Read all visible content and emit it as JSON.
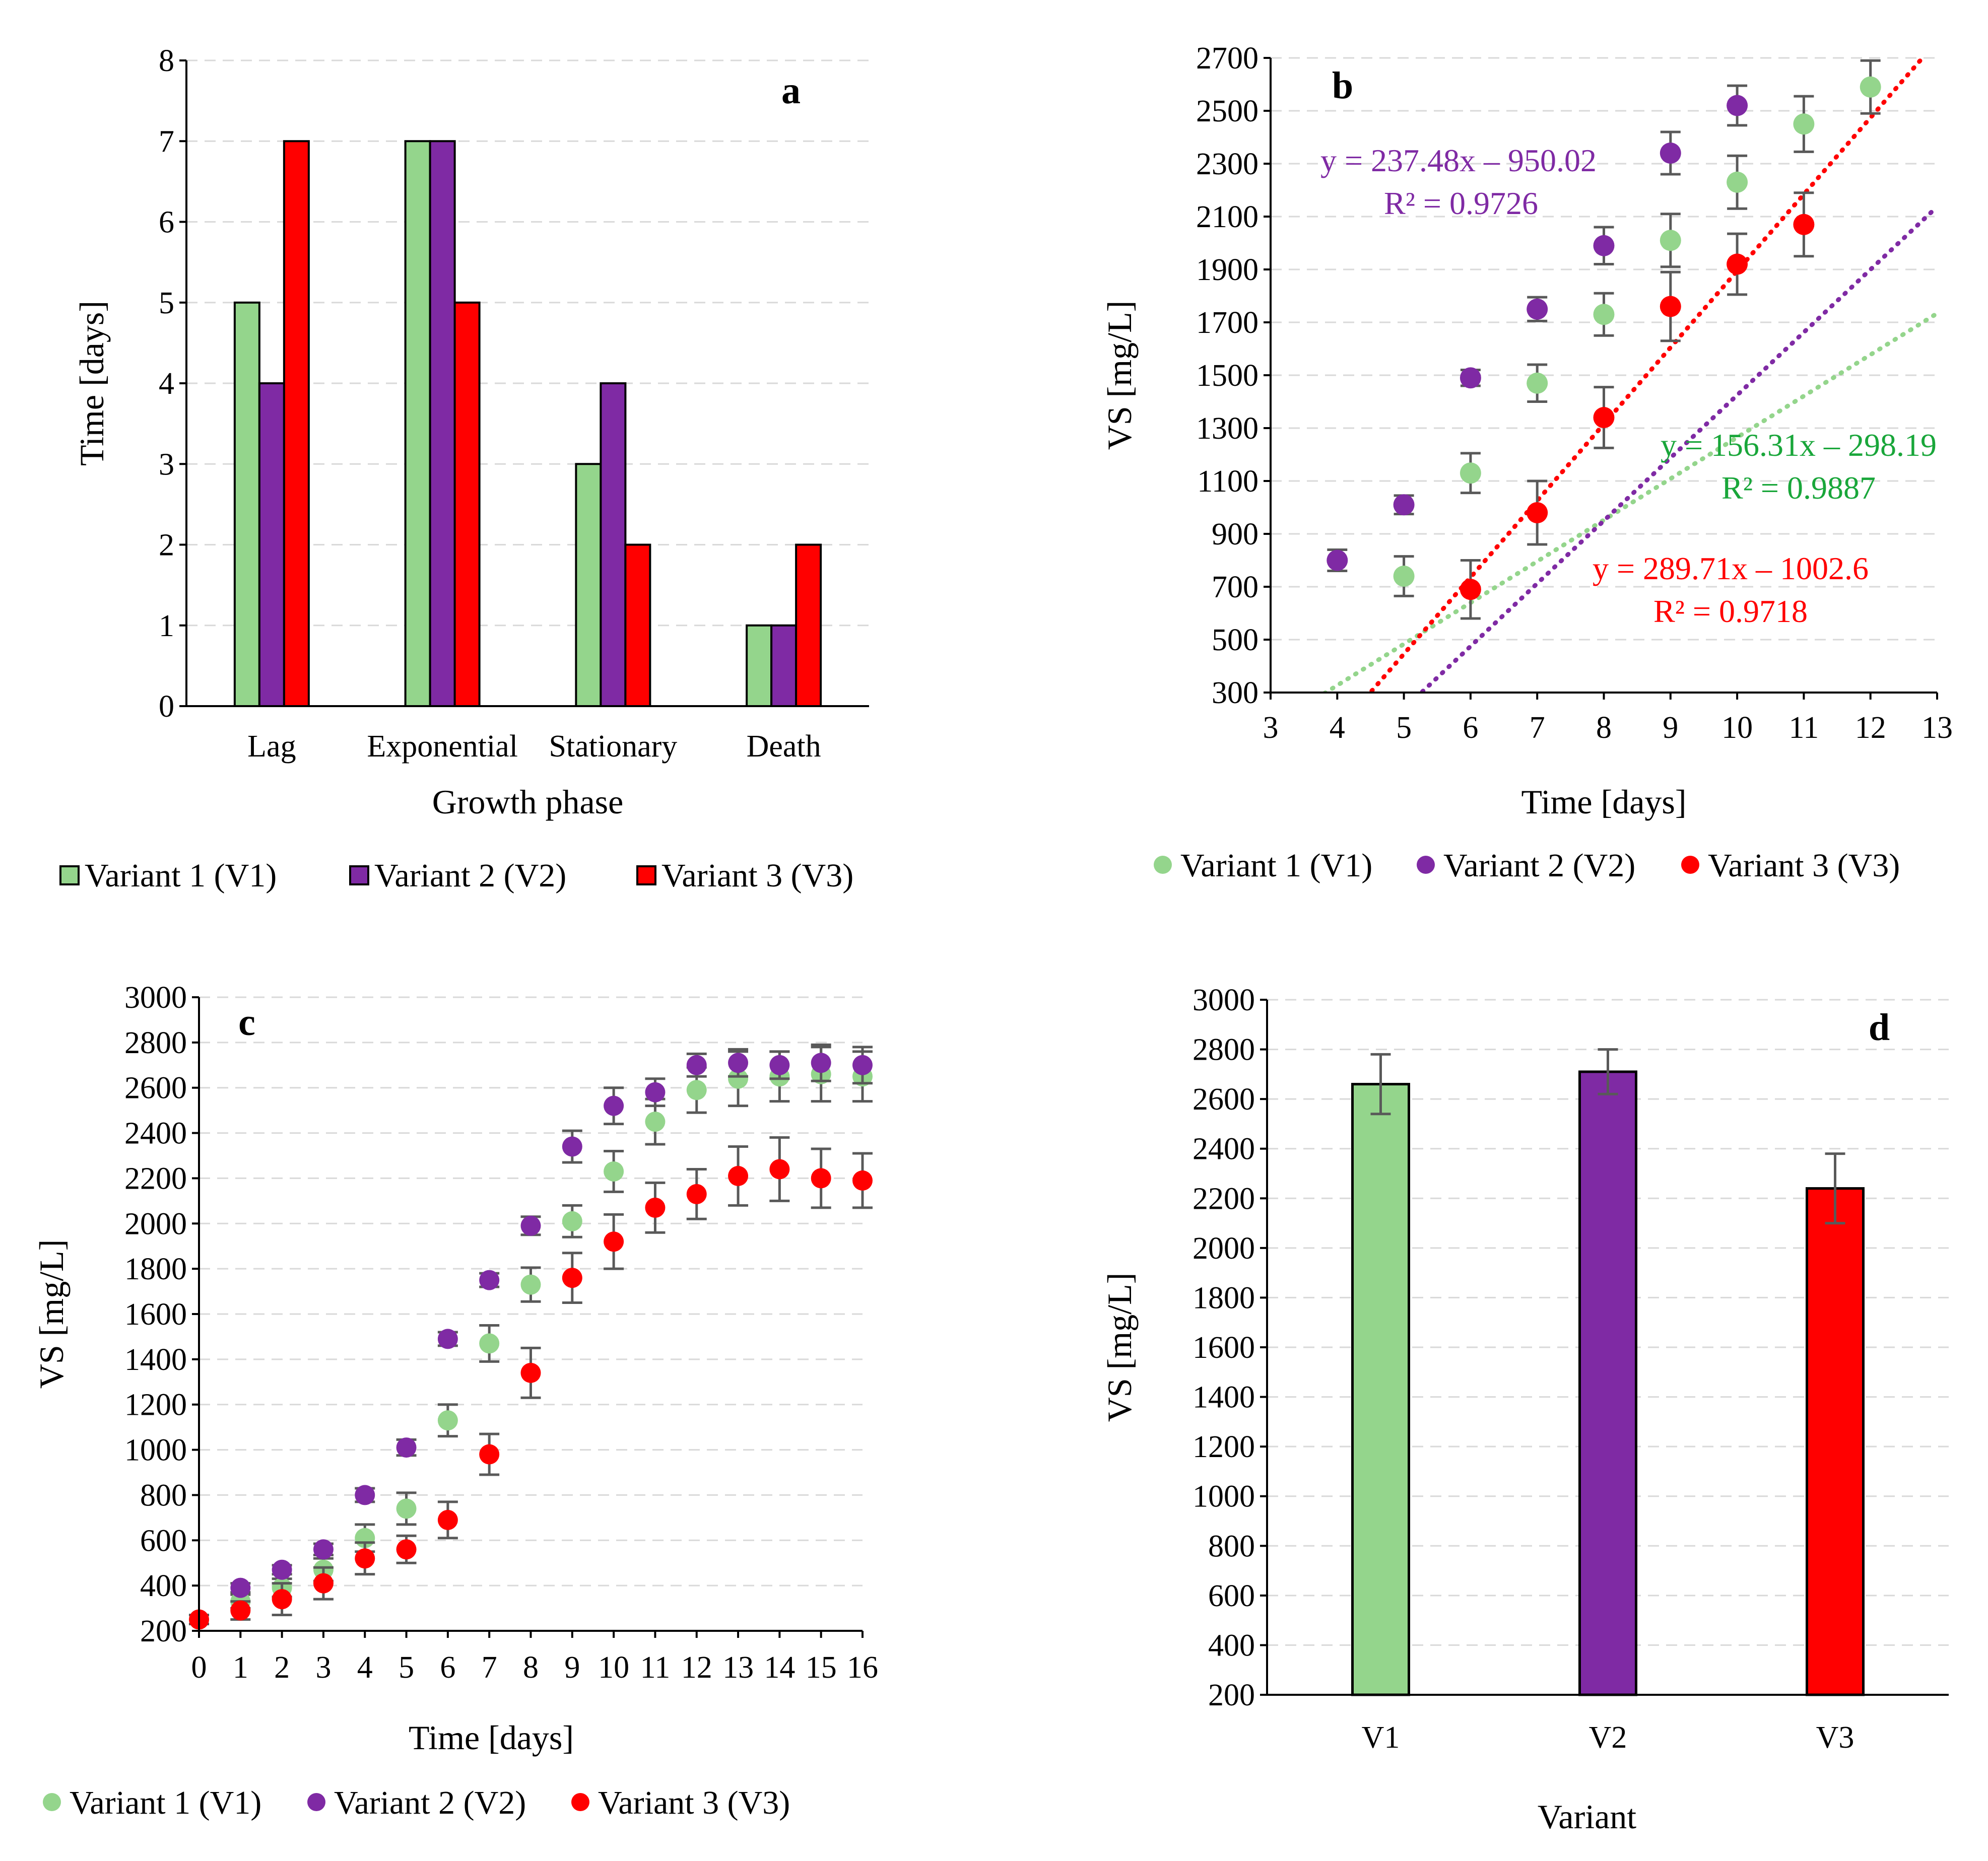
{
  "colors": {
    "v1": "#94d58c",
    "v2": "#7f2aa4",
    "v3": "#ff0000",
    "eq_v1": "#19a63a",
    "eq_v2": "#7f2aa4",
    "eq_v3": "#ff0000",
    "err": "#595959"
  },
  "chart_data": [
    {
      "id": "a",
      "type": "bar",
      "panel_label": "a",
      "title": "",
      "xlabel": "Growth phase",
      "ylabel": "Time [days]",
      "ylim": [
        0,
        8
      ],
      "yticks": [
        "0",
        "1",
        "2",
        "3",
        "4",
        "5",
        "6",
        "7",
        "8"
      ],
      "categories": [
        "Lag",
        "Exponential",
        "Stationary",
        "Death"
      ],
      "series": [
        {
          "name": "Variant 1 (V1)",
          "color_key": "v1",
          "values": [
            5,
            7,
            3,
            1
          ]
        },
        {
          "name": "Variant 2 (V2)",
          "color_key": "v2",
          "values": [
            4,
            7,
            4,
            1
          ]
        },
        {
          "name": "Variant 3 (V3)",
          "color_key": "v3",
          "values": [
            7,
            5,
            2,
            2
          ]
        }
      ],
      "legend": "bottom",
      "grid": true
    },
    {
      "id": "b",
      "type": "scatter",
      "panel_label": "b",
      "title": "",
      "xlabel": "Time [days]",
      "ylabel": "VS [mg/L]",
      "xlim": [
        3,
        13
      ],
      "ylim": [
        300,
        2700
      ],
      "xticks": [
        "3",
        "4",
        "5",
        "6",
        "7",
        "8",
        "9",
        "10",
        "11",
        "12",
        "13"
      ],
      "yticks": [
        "300",
        "500",
        "700",
        "900",
        "1100",
        "1300",
        "1500",
        "1700",
        "1900",
        "2100",
        "2300",
        "2500",
        "2700"
      ],
      "series": [
        {
          "name": "Variant 1 (V1)",
          "color_key": "v1",
          "x": [
            5,
            6,
            7,
            8,
            9,
            10,
            11,
            12
          ],
          "y": [
            740,
            1130,
            1470,
            1730,
            2010,
            2230,
            2450,
            2590
          ],
          "err": [
            75,
            75,
            70,
            80,
            100,
            100,
            105,
            100
          ],
          "trend": {
            "slope": 156.31,
            "intercept": -298.19
          }
        },
        {
          "name": "Variant 2 (V2)",
          "color_key": "v2",
          "x": [
            4,
            5,
            6,
            7,
            8,
            9,
            10
          ],
          "y": [
            800,
            1010,
            1490,
            1750,
            1990,
            2340,
            2520
          ],
          "err": [
            40,
            35,
            30,
            45,
            70,
            80,
            75
          ],
          "trend": {
            "slope": 237.48,
            "intercept": -950.02
          }
        },
        {
          "name": "Variant 3 (V3)",
          "color_key": "v3",
          "x": [
            6,
            7,
            8,
            9,
            10,
            11
          ],
          "y": [
            690,
            980,
            1340,
            1760,
            1920,
            2070
          ],
          "err": [
            110,
            120,
            115,
            130,
            115,
            120
          ],
          "trend": {
            "slope": 289.71,
            "intercept": -1002.6
          }
        }
      ],
      "annotations": [
        {
          "color_key": "eq_v2",
          "equation": "y = 237.48x – 950.02",
          "r2": "R² = 0.9726"
        },
        {
          "color_key": "eq_v1",
          "equation": "y = 156.31x – 298.19",
          "r2": "R² = 0.9887"
        },
        {
          "color_key": "eq_v3",
          "equation": "y = 289.71x – 1002.6",
          "r2": "R² = 0.9718"
        }
      ],
      "legend": "bottom",
      "grid": true
    },
    {
      "id": "c",
      "type": "scatter",
      "panel_label": "c",
      "title": "",
      "xlabel": "Time [days]",
      "ylabel": "VS [mg/L]",
      "xlim": [
        0,
        16
      ],
      "ylim": [
        200,
        3000
      ],
      "xticks": [
        "0",
        "1",
        "2",
        "3",
        "4",
        "5",
        "6",
        "7",
        "8",
        "9",
        "10",
        "11",
        "12",
        "13",
        "14",
        "15",
        "16"
      ],
      "yticks": [
        "200",
        "400",
        "600",
        "800",
        "1000",
        "1200",
        "1400",
        "1600",
        "1800",
        "2000",
        "2200",
        "2400",
        "2600",
        "2800",
        "3000"
      ],
      "series": [
        {
          "name": "Variant 1 (V1)",
          "color_key": "v1",
          "x": [
            0,
            1,
            2,
            3,
            4,
            5,
            6,
            7,
            8,
            9,
            10,
            11,
            12,
            13,
            14,
            15,
            16
          ],
          "y": [
            250,
            330,
            390,
            470,
            610,
            740,
            1130,
            1470,
            1730,
            2010,
            2230,
            2450,
            2590,
            2640,
            2650,
            2660,
            2650
          ],
          "err": [
            20,
            30,
            40,
            50,
            60,
            70,
            70,
            80,
            75,
            70,
            90,
            100,
            100,
            120,
            110,
            120,
            110
          ]
        },
        {
          "name": "Variant 2 (V2)",
          "color_key": "v2",
          "x": [
            1,
            2,
            3,
            4,
            5,
            6,
            7,
            8,
            9,
            10,
            11,
            12,
            13,
            14,
            15,
            16
          ],
          "y": [
            390,
            470,
            560,
            800,
            1010,
            1490,
            1750,
            1990,
            2340,
            2520,
            2580,
            2700,
            2710,
            2700,
            2710,
            2700
          ],
          "err": [
            20,
            20,
            25,
            30,
            35,
            30,
            30,
            40,
            70,
            80,
            60,
            50,
            60,
            60,
            80,
            80
          ]
        },
        {
          "name": "Variant 3 (V3)",
          "color_key": "v3",
          "x": [
            0,
            1,
            2,
            3,
            4,
            5,
            6,
            7,
            8,
            9,
            10,
            11,
            12,
            13,
            14,
            15,
            16
          ],
          "y": [
            250,
            290,
            340,
            410,
            520,
            560,
            690,
            980,
            1340,
            1760,
            1920,
            2070,
            2130,
            2210,
            2240,
            2200,
            2190
          ],
          "err": [
            20,
            40,
            70,
            70,
            70,
            60,
            80,
            90,
            110,
            110,
            120,
            110,
            110,
            130,
            140,
            130,
            120
          ]
        }
      ],
      "legend": "bottom",
      "grid": true
    },
    {
      "id": "d",
      "type": "bar",
      "panel_label": "d",
      "title": "",
      "xlabel": "Variant",
      "ylabel": "VS [mg/L]",
      "ylim": [
        200,
        3000
      ],
      "yticks": [
        "200",
        "400",
        "600",
        "800",
        "1000",
        "1200",
        "1400",
        "1600",
        "1800",
        "2000",
        "2200",
        "2400",
        "2600",
        "2800",
        "3000"
      ],
      "categories": [
        "V1",
        "V2",
        "V3"
      ],
      "values": [
        2660,
        2710,
        2240
      ],
      "err": [
        120,
        90,
        140
      ],
      "color_keys": [
        "v1",
        "v2",
        "v3"
      ],
      "grid": true
    }
  ]
}
